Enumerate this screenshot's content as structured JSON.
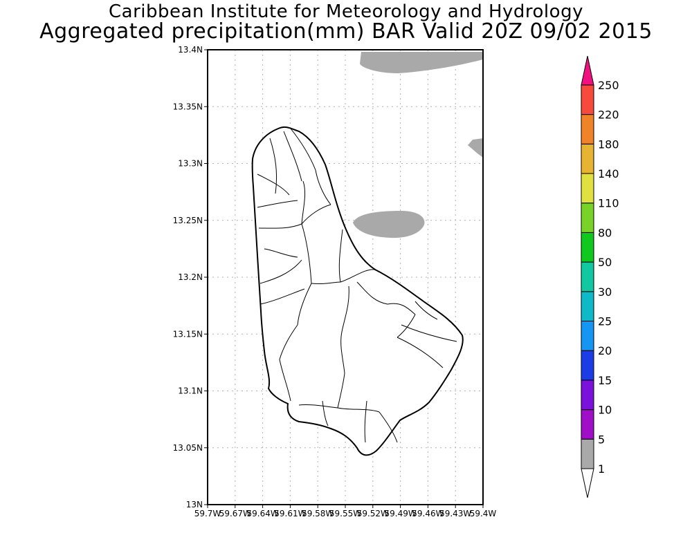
{
  "header": {
    "title_line1": "Caribbean Institute for Meteorology and Hydrology",
    "title_line2": "Aggregated precipitation(mm) BAR Valid 20Z 09/02 2015"
  },
  "map": {
    "region": "Barbados",
    "lon_range": [
      -59.7,
      -59.4
    ],
    "lat_range": [
      13.0,
      13.4
    ],
    "grid": true,
    "lat_ticks": [
      {
        "value": 13.4,
        "label": "13.4N"
      },
      {
        "value": 13.35,
        "label": "13.35N"
      },
      {
        "value": 13.3,
        "label": "13.3N"
      },
      {
        "value": 13.25,
        "label": "13.25N"
      },
      {
        "value": 13.2,
        "label": "13.2N"
      },
      {
        "value": 13.15,
        "label": "13.15N"
      },
      {
        "value": 13.1,
        "label": "13.1N"
      },
      {
        "value": 13.05,
        "label": "13.05N"
      },
      {
        "value": 13.0,
        "label": "13N"
      }
    ],
    "lon_ticks": [
      {
        "value": -59.7,
        "label": "59.7W"
      },
      {
        "value": -59.67,
        "label": "59.67W"
      },
      {
        "value": -59.64,
        "label": "59.64W"
      },
      {
        "value": -59.61,
        "label": "59.61W"
      },
      {
        "value": -59.58,
        "label": "59.58W"
      },
      {
        "value": -59.55,
        "label": "59.55W"
      },
      {
        "value": -59.52,
        "label": "59.52W"
      },
      {
        "value": -59.49,
        "label": "59.49W"
      },
      {
        "value": -59.46,
        "label": "59.46W"
      },
      {
        "value": -59.43,
        "label": "59.43W"
      },
      {
        "value": -59.4,
        "label": "59.4W"
      }
    ],
    "precip_areas_class": "1-5 mm",
    "precip_color": "#a9a9a9"
  },
  "colorbar": {
    "levels": [
      "1",
      "5",
      "10",
      "15",
      "20",
      "25",
      "30",
      "50",
      "80",
      "110",
      "140",
      "180",
      "220",
      "250"
    ],
    "colors": [
      "#a9a9a9",
      "#a10ec8",
      "#7a12dc",
      "#1c3ce6",
      "#1596f2",
      "#0fb9c8",
      "#11c8a0",
      "#10c81e",
      "#78d228",
      "#e0e040",
      "#e6b432",
      "#f08228",
      "#f54a3c",
      "#f0107f"
    ],
    "under_color": "#ffffff"
  }
}
